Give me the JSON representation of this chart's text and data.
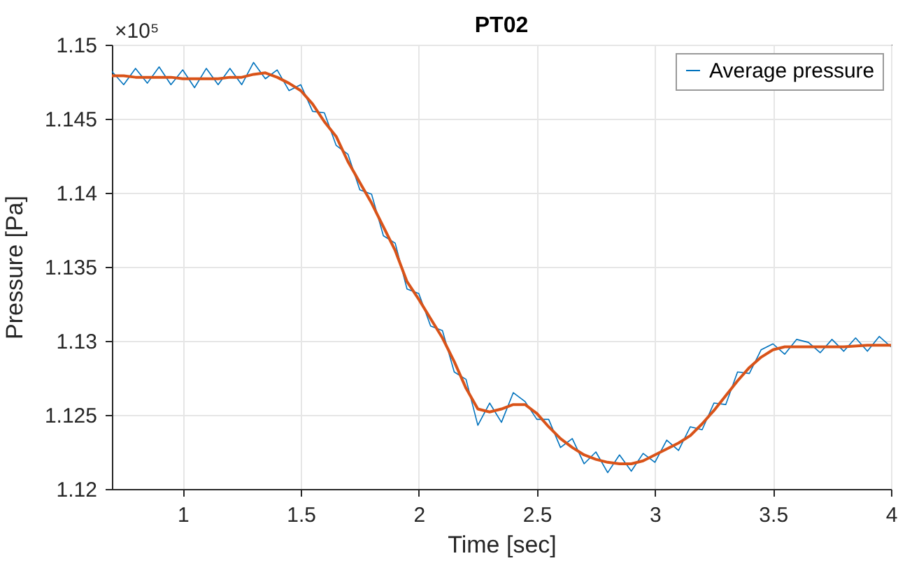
{
  "chart_data": {
    "type": "line",
    "title": "PT02",
    "xlabel": "Time [sec]",
    "ylabel": "Pressure [Pa]",
    "annotations": [
      "×10⁵"
    ],
    "xlim": [
      0.7,
      4
    ],
    "xticks": [
      1,
      1.5,
      2,
      2.5,
      3,
      3.5,
      4
    ],
    "ylim": [
      1.12,
      1.15
    ],
    "yticks": [
      1.12,
      1.125,
      1.13,
      1.135,
      1.14,
      1.145,
      1.15
    ],
    "grid": true,
    "legend": "top right",
    "series": [
      {
        "name": "Average pressure",
        "color": "#0072bd",
        "x": [
          0.7,
          0.75,
          0.8,
          0.85,
          0.9,
          0.95,
          1,
          1.05,
          1.1,
          1.15,
          1.2,
          1.25,
          1.3,
          1.35,
          1.4,
          1.45,
          1.5,
          1.55,
          1.6,
          1.65,
          1.7,
          1.75,
          1.8,
          1.85,
          1.9,
          1.95,
          2,
          2.05,
          2.1,
          2.15,
          2.2,
          2.25,
          2.3,
          2.35,
          2.4,
          2.45,
          2.5,
          2.55,
          2.6,
          2.65,
          2.7,
          2.75,
          2.8,
          2.85,
          2.9,
          2.95,
          3,
          3.05,
          3.1,
          3.15,
          3.2,
          3.25,
          3.3,
          3.35,
          3.4,
          3.45,
          3.5,
          3.55,
          3.6,
          3.65,
          3.7,
          3.75,
          3.8,
          3.85,
          3.9,
          3.95,
          4
        ],
        "values": [
          1.1482,
          1.1473,
          1.1484,
          1.1474,
          1.1485,
          1.1473,
          1.1483,
          1.1471,
          1.1484,
          1.1473,
          1.1484,
          1.1473,
          1.1488,
          1.1477,
          1.1483,
          1.1469,
          1.1473,
          1.1455,
          1.1454,
          1.1432,
          1.1426,
          1.1402,
          1.1399,
          1.1371,
          1.1366,
          1.1335,
          1.1332,
          1.131,
          1.1307,
          1.1279,
          1.1274,
          1.1243,
          1.1258,
          1.1245,
          1.1265,
          1.1259,
          1.1247,
          1.1247,
          1.1228,
          1.1234,
          1.1217,
          1.1225,
          1.1211,
          1.1223,
          1.1212,
          1.1224,
          1.1218,
          1.1233,
          1.1226,
          1.1242,
          1.124,
          1.1258,
          1.1257,
          1.1279,
          1.1278,
          1.1294,
          1.1298,
          1.1291,
          1.1301,
          1.1299,
          1.1292,
          1.1301,
          1.1293,
          1.1302,
          1.1293,
          1.1303,
          1.1296
        ]
      },
      {
        "color": "#d95319",
        "x": [
          0.7,
          0.75,
          0.8,
          0.85,
          0.9,
          0.95,
          1,
          1.05,
          1.1,
          1.15,
          1.2,
          1.25,
          1.3,
          1.35,
          1.4,
          1.45,
          1.5,
          1.55,
          1.6,
          1.65,
          1.7,
          1.75,
          1.8,
          1.85,
          1.9,
          1.95,
          2,
          2.05,
          2.1,
          2.15,
          2.2,
          2.25,
          2.3,
          2.35,
          2.4,
          2.45,
          2.5,
          2.55,
          2.6,
          2.65,
          2.7,
          2.75,
          2.8,
          2.85,
          2.9,
          2.95,
          3,
          3.05,
          3.1,
          3.15,
          3.2,
          3.25,
          3.3,
          3.35,
          3.4,
          3.45,
          3.5,
          3.55,
          3.6,
          3.7,
          3.8,
          3.9,
          4
        ],
        "values": [
          1.1479,
          1.1479,
          1.1478,
          1.1478,
          1.1478,
          1.1478,
          1.1477,
          1.1477,
          1.1477,
          1.1477,
          1.1478,
          1.1478,
          1.148,
          1.1481,
          1.1478,
          1.1474,
          1.1469,
          1.146,
          1.1448,
          1.1438,
          1.1421,
          1.1407,
          1.1393,
          1.1377,
          1.1361,
          1.134,
          1.1328,
          1.1315,
          1.1302,
          1.1286,
          1.1268,
          1.1254,
          1.1252,
          1.1254,
          1.1257,
          1.1257,
          1.1251,
          1.1242,
          1.1234,
          1.1228,
          1.1223,
          1.122,
          1.1218,
          1.1217,
          1.1217,
          1.1219,
          1.1223,
          1.1227,
          1.1231,
          1.1236,
          1.1244,
          1.1253,
          1.1263,
          1.1273,
          1.1282,
          1.1289,
          1.1294,
          1.1296,
          1.1296,
          1.1296,
          1.1296,
          1.1297,
          1.1297
        ]
      }
    ]
  }
}
